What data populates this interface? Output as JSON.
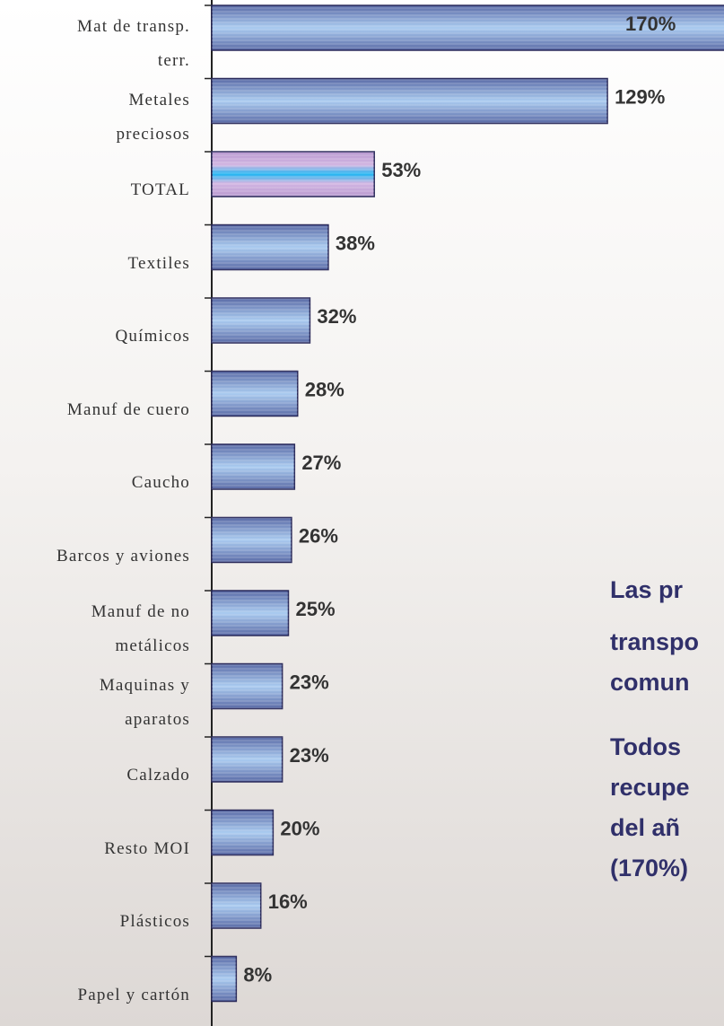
{
  "chart_data": {
    "type": "hbar",
    "categories": [
      "Mat de transp.\nterr.",
      "Metales\npreciosos",
      "TOTAL",
      "Textiles",
      "Químicos",
      "Manuf de cuero",
      "Caucho",
      "Barcos y aviones",
      "Manuf de no\nmetálicos",
      "Maquinas y\naparatos",
      "Calzado",
      "Resto MOI",
      "Plásticos",
      "Papel y cartón"
    ],
    "values": [
      170,
      129,
      53,
      38,
      32,
      28,
      27,
      26,
      25,
      23,
      23,
      20,
      16,
      8
    ],
    "value_labels": [
      "170%",
      "129%",
      "53%",
      "38%",
      "32%",
      "28%",
      "27%",
      "26%",
      "25%",
      "23%",
      "23%",
      "20%",
      "16%",
      "8%"
    ],
    "color": "#7f9fd6",
    "highlight_index": 2,
    "highlight_color": "#c9a9dd",
    "xlim": [
      0,
      167
    ],
    "annotations": [
      "Las pr",
      "transpo",
      "comun",
      "Todos",
      "recupe",
      "del añ",
      "(170%)"
    ]
  }
}
